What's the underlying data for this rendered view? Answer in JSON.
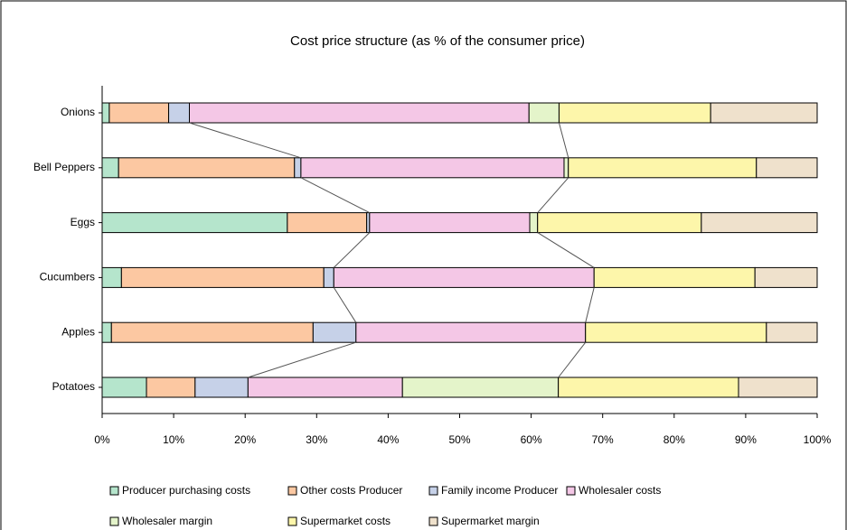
{
  "chart_data": {
    "type": "stacked-barh",
    "title": "Cost price structure (as % of the consumer price)",
    "categories": [
      "Onions",
      "Bell Peppers",
      "Eggs",
      "Cucumbers",
      "Apples",
      "Potatoes"
    ],
    "series": [
      {
        "name": "Producer purchasing costs",
        "color": "#b5e5cc",
        "values": [
          1.0,
          2.3,
          25.9,
          2.7,
          1.3,
          6.2
        ]
      },
      {
        "name": "Other costs Producer",
        "color": "#fcc8a2",
        "values": [
          8.3,
          24.6,
          11.1,
          28.3,
          28.2,
          6.8
        ]
      },
      {
        "name": "Family income Producer",
        "color": "#c6d1e8",
        "values": [
          2.9,
          0.9,
          0.4,
          1.4,
          6.0,
          7.4
        ]
      },
      {
        "name": "Wholesaler costs",
        "color": "#f4c7e6",
        "values": [
          47.5,
          36.8,
          22.4,
          36.4,
          32.1,
          21.6
        ]
      },
      {
        "name": "Wholesaler margin",
        "color": "#e4f4ca",
        "values": [
          4.2,
          0.6,
          1.1,
          0,
          0,
          21.8
        ]
      },
      {
        "name": "Supermarket costs",
        "color": "#fdf6aa",
        "values": [
          21.2,
          26.3,
          22.9,
          22.5,
          25.3,
          25.2
        ]
      },
      {
        "name": "Supermarket margin",
        "color": "#efe1cc",
        "values": [
          14.9,
          8.5,
          16.2,
          8.7,
          7.1,
          11.0
        ]
      }
    ],
    "xlim": [
      0,
      100
    ],
    "xticks": [
      {
        "value": 0,
        "label": "0%"
      },
      {
        "value": 10,
        "label": "10%"
      },
      {
        "value": 20,
        "label": "20%"
      },
      {
        "value": 30,
        "label": "30%"
      },
      {
        "value": 40,
        "label": "40%"
      },
      {
        "value": 50,
        "label": "50%"
      },
      {
        "value": 60,
        "label": "60%"
      },
      {
        "value": 70,
        "label": "70%"
      },
      {
        "value": 80,
        "label": "80%"
      },
      {
        "value": 90,
        "label": "90%"
      },
      {
        "value": 100,
        "label": "100%"
      }
    ],
    "legend": "bottom"
  }
}
